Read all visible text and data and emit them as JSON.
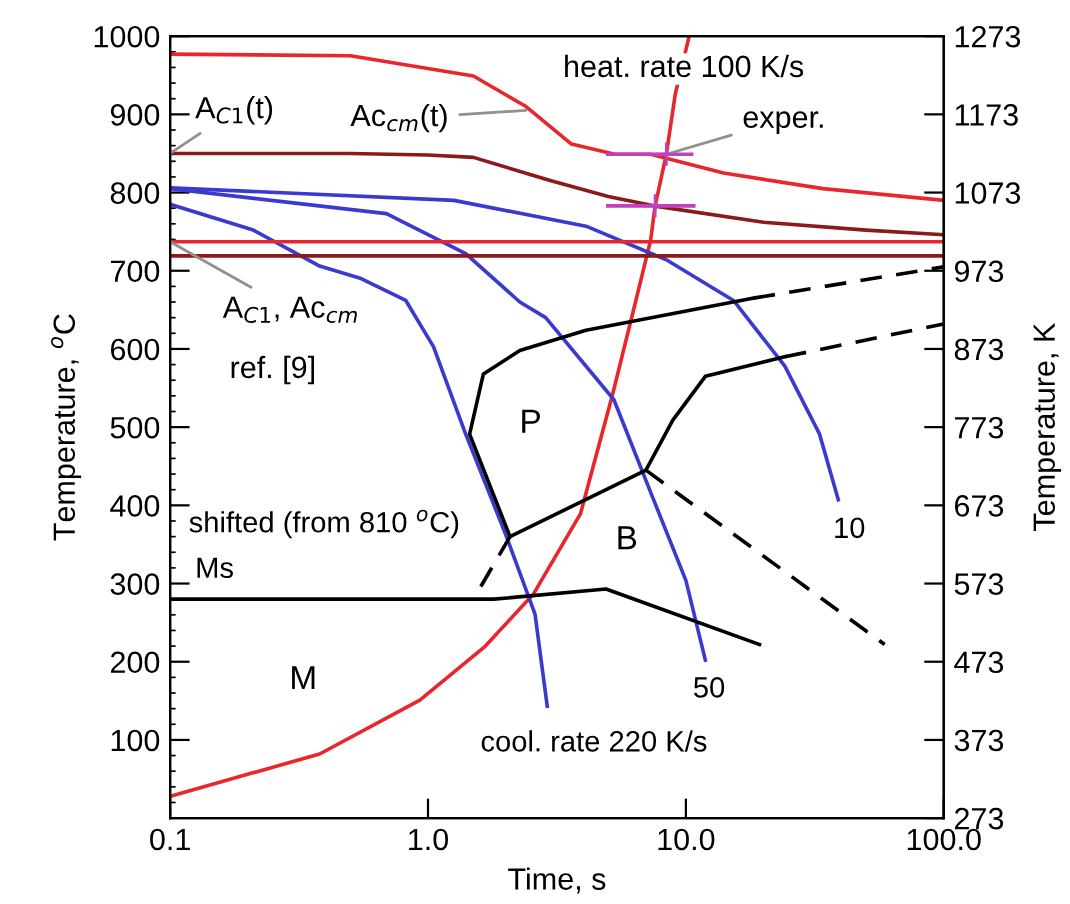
{
  "chart_data": {
    "type": "line",
    "xlabel": "Time, s",
    "ylabel": "Temperature, $^{o}$C",
    "y2label": "Temperature, K",
    "log": "x",
    "xlim": [
      0.1,
      100
    ],
    "xticks": [
      {
        "value": 0.1,
        "label": "0.1"
      },
      {
        "value": 1,
        "label": "1.0"
      },
      {
        "value": 10,
        "label": "10.0"
      },
      {
        "value": 100,
        "label": "100.0"
      }
    ],
    "ylim": [
      0,
      1000
    ],
    "yticks": [
      100,
      200,
      300,
      400,
      500,
      600,
      700,
      800,
      900,
      1000
    ],
    "y2lim": [
      273,
      1273
    ],
    "y2ticks": [
      273,
      373,
      473,
      573,
      673,
      773,
      873,
      973,
      1073,
      1173,
      1273
    ],
    "grid": false,
    "series": [
      {
        "color": "#e8262b",
        "x": [
          0.1,
          0.5,
          1.5,
          2.4,
          3.6,
          5.3,
          7.3,
          14,
          34,
          100
        ],
        "values": [
          977,
          975,
          949,
          910,
          862,
          849,
          849,
          825,
          805,
          790
        ]
      },
      {
        "color": "#8b1a1a",
        "x": [
          0.1,
          0.5,
          1.0,
          1.5,
          3.0,
          5.0,
          7.5,
          20,
          50,
          100
        ],
        "values": [
          850,
          850,
          848,
          845,
          815,
          795,
          783,
          762,
          752,
          746
        ]
      },
      {
        "color": "#e8262b",
        "x": [
          0.1,
          0.38,
          0.93,
          1.67,
          2.57,
          3.9,
          5.2,
          6.4,
          7.3,
          7.6,
          8.4,
          9.1,
          10.3
        ],
        "values": [
          28,
          82,
          151,
          220,
          287,
          389,
          542,
          662,
          739,
          783,
          849,
          926,
          1000
        ]
      },
      {
        "color": "#3a3ad0",
        "x": [
          0.1,
          0.21,
          0.38,
          0.55,
          0.82,
          1.05,
          1.4,
          2.0,
          2.6,
          2.9
        ],
        "values": [
          785,
          752,
          706,
          690,
          662,
          603,
          491,
          363,
          261,
          143
        ]
      },
      {
        "color": "#3a3ad0",
        "x": [
          0.1,
          0.69,
          1.4,
          2.27,
          2.86,
          5.26,
          7.5,
          10.0,
          11.9
        ],
        "values": [
          805,
          773,
          722,
          660,
          640,
          535,
          407,
          304,
          202
        ]
      },
      {
        "color": "#3a3ad0",
        "x": [
          0.1,
          1.26,
          4.1,
          8.4,
          15.3,
          24.2,
          33,
          39
        ],
        "values": [
          806,
          790,
          757,
          714,
          662,
          578,
          491,
          407
        ]
      },
      {
        "color": "#000000",
        "x": [
          2.08,
          1.45,
          1.64,
          2.27,
          4.1,
          18.3
        ],
        "values": [
          360,
          491,
          568,
          598,
          624,
          665
        ]
      },
      {
        "color": "#000000",
        "line_style": "dashed",
        "x": [
          18.3,
          100
        ],
        "values": [
          665,
          705
        ]
      },
      {
        "color": "#000000",
        "x": [
          7.0,
          8.9,
          11.9,
          24.2
        ],
        "values": [
          445,
          509,
          565,
          590
        ]
      },
      {
        "color": "#000000",
        "line_style": "dashed",
        "x": [
          24.2,
          100
        ],
        "values": [
          590,
          632
        ]
      },
      {
        "color": "#000000",
        "x": [
          2.08,
          7.0
        ],
        "values": [
          360,
          445
        ]
      },
      {
        "color": "#000000",
        "line_style": "dashed",
        "x": [
          7.0,
          59
        ],
        "values": [
          445,
          222
        ]
      },
      {
        "color": "#000000",
        "line_style": "dashed",
        "x": [
          2.08,
          1.5
        ],
        "values": [
          360,
          280
        ]
      },
      {
        "color": "#000000",
        "x": [
          0.1,
          1.8,
          4.9,
          19.3
        ],
        "values": [
          280,
          280,
          293,
          222
        ]
      },
      {
        "type": "scatter",
        "marker": "cross",
        "color": "#c040c0",
        "x": [
          8.4
        ],
        "values": [
          849
        ],
        "xerrors": [
          [
            4.9,
            10.7
          ]
        ]
      },
      {
        "type": "scatter",
        "marker": "cross",
        "color": "#c040c0",
        "x": [
          7.6
        ],
        "values": [
          783
        ],
        "xerrors": [
          [
            4.9,
            10.9
          ]
        ]
      }
    ],
    "ref_lines": [
      {
        "axis": "y",
        "value": 737,
        "color": "#e8262b"
      },
      {
        "axis": "y",
        "value": 719,
        "color": "#8b1a1a"
      }
    ],
    "annotations": [
      {
        "text": "A$_{C1}$(t)",
        "x": 0.1,
        "y": 850
      },
      {
        "text": "Ac$_{cm}$(t)",
        "x": 2.4,
        "y": 905
      },
      "heat. rate 100 K/s",
      {
        "text": "exper.",
        "x": 8.4,
        "y": 849
      },
      {
        "text": "A$_{C1}$, Ac$_{cm}$",
        "x": 0.1,
        "y": 737
      },
      "ref. [9]",
      "shifted (from 810 $^{o}$C)",
      "Ms",
      "M",
      "P",
      "B",
      "10",
      "50",
      "cool. rate 220 K/s"
    ]
  }
}
